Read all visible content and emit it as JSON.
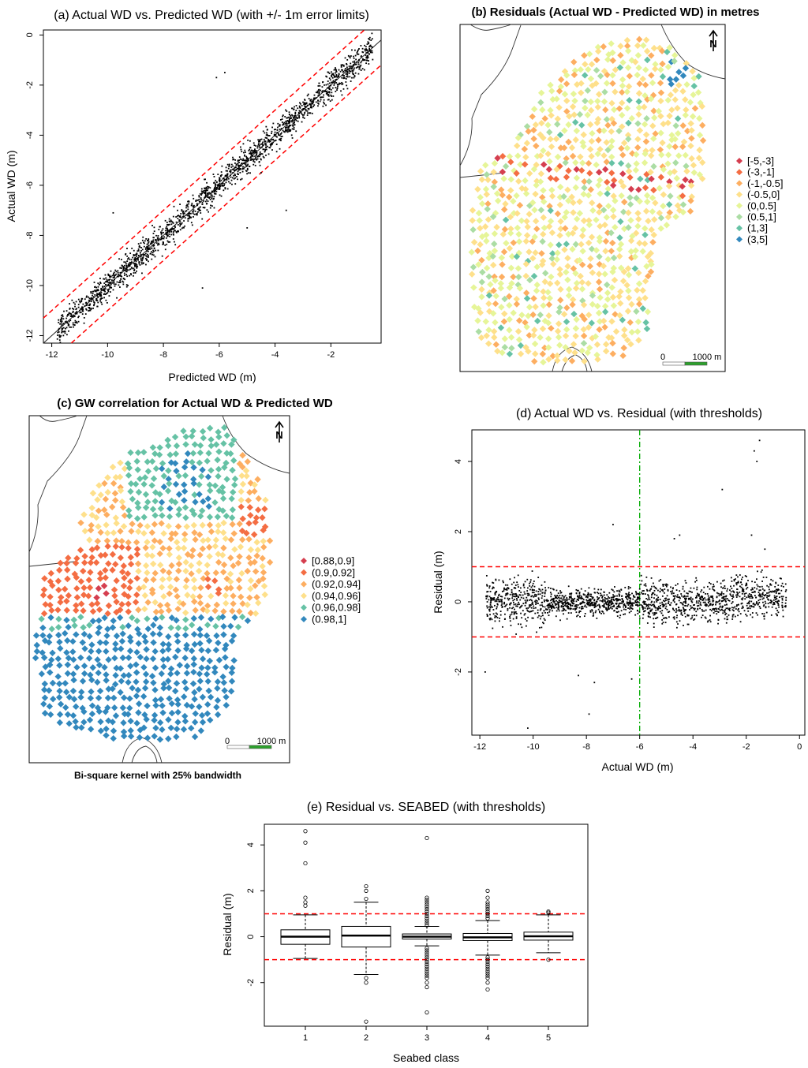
{
  "panels": {
    "a": {
      "title": "(a) Actual WD vs. Predicted WD (with +/- 1m error limits)"
    },
    "b": {
      "title": "(b) Residuals (Actual WD - Predicted WD) in metres",
      "scale_zero": "0",
      "scale_label": "1000 m",
      "north": "N"
    },
    "c": {
      "title": "(c) GW correlation for Actual WD & Predicted WD",
      "scale_zero": "0",
      "scale_label": "1000 m",
      "north": "N",
      "caption": "Bi-square kernel with 25% bandwidth"
    },
    "d": {
      "title": "(d) Actual WD vs. Residual (with thresholds)"
    },
    "e": {
      "title": "(e) Residual vs. SEABED (with thresholds)"
    }
  },
  "colors": {
    "c1": "#d53e4f",
    "c2": "#f46d43",
    "c3": "#fdae61",
    "c4": "#fee08b",
    "c5": "#e6f598",
    "c6": "#abdda4",
    "c7": "#66c2a5",
    "c8": "#3288bd",
    "threshold": "#ff0000",
    "vline": "#00aa00"
  },
  "chart_data": [
    {
      "id": "a",
      "type": "scatter",
      "title": "(a) Actual WD vs. Predicted WD (with +/- 1m error limits)",
      "xlabel": "Predicted WD (m)",
      "ylabel": "Actual WD (m)",
      "xlim": [
        -12.3,
        -0.2
      ],
      "ylim": [
        -12.3,
        0.2
      ],
      "xticks": [
        "-12",
        "-10",
        "-8",
        "-6",
        "-4",
        "-2"
      ],
      "yticks": [
        "-12",
        "-10",
        "-8",
        "-6",
        "-4",
        "-2",
        "0"
      ],
      "fit_line": {
        "slope": 1.0,
        "intercept": 0.0
      },
      "error_limits": [
        1,
        -1
      ],
      "n_points": 1800,
      "outliers": [
        [
          -6.1,
          -1.7
        ],
        [
          -5.8,
          -1.5
        ],
        [
          -9.8,
          -7.1
        ],
        [
          -6.6,
          -10.1
        ],
        [
          -5.0,
          -7.7
        ],
        [
          -3.6,
          -7.0
        ],
        [
          -11.0,
          -11.0
        ],
        [
          -4.5,
          -5.5
        ]
      ]
    },
    {
      "id": "d",
      "type": "scatter",
      "title": "(d) Actual WD vs. Residual (with thresholds)",
      "xlabel": "Actual WD (m)",
      "ylabel": "Residual (m)",
      "xlim": [
        -12.3,
        0.2
      ],
      "ylim": [
        -3.8,
        4.9
      ],
      "xticks": [
        "-12",
        "-10",
        "-8",
        "-6",
        "-4",
        "-2",
        "0"
      ],
      "yticks": [
        "-2",
        "0",
        "2",
        "4"
      ],
      "thresholds": [
        1,
        -1
      ],
      "vertical_line": -6,
      "n_points": 1800,
      "outliers": [
        [
          -1.5,
          4.6
        ],
        [
          -1.7,
          4.3
        ],
        [
          -1.6,
          4.0
        ],
        [
          -2.9,
          3.2
        ],
        [
          -7.0,
          2.2
        ],
        [
          -1.8,
          1.9
        ],
        [
          -10.2,
          -3.6
        ],
        [
          -7.9,
          -3.2
        ],
        [
          -7.7,
          -2.3
        ],
        [
          -8.3,
          -2.1
        ],
        [
          -11.8,
          -2.0
        ],
        [
          -6.3,
          -2.2
        ],
        [
          -4.5,
          1.9
        ],
        [
          -4.7,
          1.8
        ],
        [
          -1.3,
          1.5
        ]
      ]
    },
    {
      "id": "e",
      "type": "boxplot",
      "title": "(e) Residual vs. SEABED (with thresholds)",
      "xlabel": "Seabed class",
      "ylabel": "Residual (m)",
      "ylim": [
        -3.9,
        4.9
      ],
      "categories": [
        "1",
        "2",
        "3",
        "4",
        "5"
      ],
      "yticks": [
        "-2",
        "0",
        "2",
        "4"
      ],
      "thresholds": [
        1,
        -1
      ],
      "boxes": [
        {
          "class": "1",
          "min": -0.95,
          "q1": -0.33,
          "median": 0.0,
          "q3": 0.3,
          "max": 0.95,
          "outliers": [
            4.6,
            4.1,
            3.2,
            1.7,
            1.5,
            1.35
          ]
        },
        {
          "class": "2",
          "min": -1.65,
          "q1": -0.45,
          "median": 0.05,
          "q3": 0.45,
          "max": 1.5,
          "outliers": [
            2.2,
            2.0,
            1.65,
            -2.0,
            -1.8,
            -3.7
          ]
        },
        {
          "class": "3",
          "min": -0.4,
          "q1": -0.1,
          "median": 0.0,
          "q3": 0.12,
          "max": 0.45,
          "outliers": [
            4.3,
            1.7,
            1.6,
            1.5,
            1.4,
            1.3,
            1.2,
            1.1,
            1.0,
            0.9,
            0.8,
            0.7,
            0.6,
            0.5,
            -0.5,
            -0.6,
            -0.7,
            -0.8,
            -0.9,
            -1.0,
            -1.1,
            -1.2,
            -1.3,
            -1.4,
            -1.5,
            -1.6,
            -1.7,
            -1.8,
            -2.0,
            -2.2,
            -3.3
          ]
        },
        {
          "class": "4",
          "min": -0.8,
          "q1": -0.17,
          "median": -0.03,
          "q3": 0.14,
          "max": 0.7,
          "outliers": [
            2.0,
            1.7,
            1.5,
            1.4,
            1.3,
            1.2,
            1.1,
            1.0,
            0.9,
            0.8,
            -0.9,
            -1.0,
            -1.1,
            -1.2,
            -1.3,
            -1.4,
            -1.5,
            -1.6,
            -1.7,
            -1.8,
            -2.0,
            -2.3
          ]
        },
        {
          "class": "5",
          "min": -0.7,
          "q1": -0.15,
          "median": 0.02,
          "q3": 0.2,
          "max": 0.95,
          "outliers": [
            1.1,
            1.05,
            -1.0
          ]
        }
      ]
    },
    {
      "id": "b",
      "type": "map",
      "title": "(b) Residuals (Actual WD - Predicted WD) in metres",
      "legend": [
        "[-5,-3]",
        "(-3,-1]",
        "(-1,-0.5]",
        "(-0.5,0]",
        "(0,0.5]",
        "(0.5,1]",
        "(1,3]",
        "(3,5]"
      ],
      "legend_colors": [
        "#d53e4f",
        "#f46d43",
        "#fdae61",
        "#fee08b",
        "#e6f598",
        "#abdda4",
        "#66c2a5",
        "#3288bd"
      ]
    },
    {
      "id": "c",
      "type": "map",
      "title": "(c) GW correlation for Actual WD & Predicted WD",
      "legend": [
        "[0.88,0.9]",
        "(0.9,0.92]",
        "(0.92,0.94]",
        "(0.94,0.96]",
        "(0.96,0.98]",
        "(0.98,1]"
      ],
      "legend_colors": [
        "#d53e4f",
        "#f46d43",
        "#fdae61",
        "#fee08b",
        "#66c2a5",
        "#3288bd"
      ]
    }
  ]
}
